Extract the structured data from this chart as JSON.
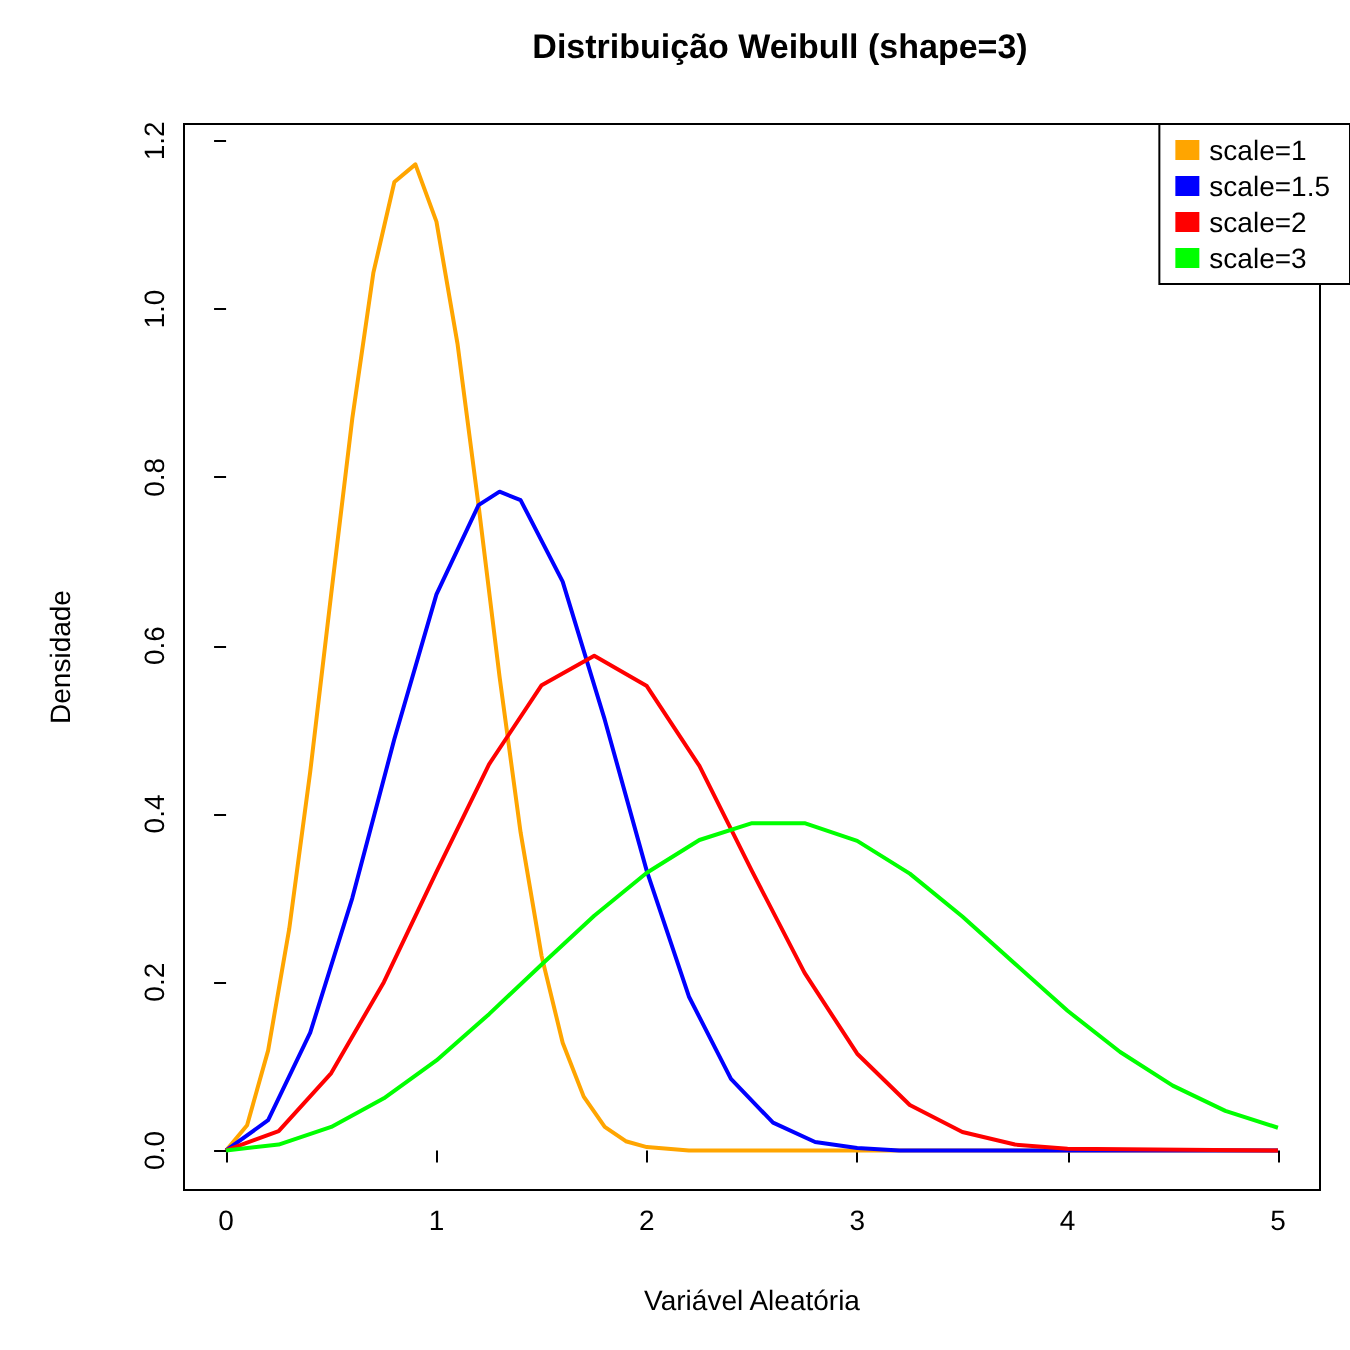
{
  "chart_data": {
    "type": "line",
    "title": "Distribuição Weibull (shape=3)",
    "xlabel": "Variável Aleatória",
    "ylabel": "Densidade",
    "xlim": [
      -0.2,
      5.2
    ],
    "xticks": [
      0,
      1,
      2,
      3,
      4,
      5
    ],
    "ylim": [
      -0.047,
      1.22
    ],
    "yticks": [
      {
        "value": 0,
        "label": "0.0"
      },
      0.2,
      0.4,
      0.6,
      0.8,
      {
        "value": 1,
        "label": "1.0"
      },
      1.2
    ],
    "grid": false,
    "legend": "top right",
    "marker": "none",
    "line_style": "solid",
    "series": [
      {
        "name": "scale=1",
        "color": "#ffa500",
        "x": [
          0,
          0.1,
          0.2,
          0.3,
          0.4,
          0.5,
          0.6,
          0.7,
          0.8,
          0.9,
          1.0,
          1.1,
          1.2,
          1.3,
          1.4,
          1.5,
          1.6,
          1.7,
          1.8,
          1.9,
          2.0,
          2.2,
          5
        ],
        "values": [
          0,
          0.03,
          0.119,
          0.263,
          0.45,
          0.662,
          0.87,
          1.043,
          1.151,
          1.172,
          1.104,
          0.959,
          0.767,
          0.563,
          0.378,
          0.231,
          0.128,
          0.064,
          0.028,
          0.011,
          0.004,
          0,
          0
        ]
      },
      {
        "name": "scale=1.5",
        "color": "#0000ff",
        "x": [
          0,
          0.2,
          0.4,
          0.6,
          0.8,
          1.0,
          1.2,
          1.3,
          1.4,
          1.6,
          1.8,
          2.0,
          2.2,
          2.4,
          2.6,
          2.8,
          3.0,
          3.2,
          5
        ],
        "values": [
          0,
          0.036,
          0.14,
          0.3,
          0.489,
          0.661,
          0.767,
          0.783,
          0.773,
          0.676,
          0.512,
          0.332,
          0.183,
          0.085,
          0.033,
          0.01,
          0.003,
          0,
          0
        ]
      },
      {
        "name": "scale=2",
        "color": "#ff0000",
        "x": [
          0,
          0.25,
          0.5,
          0.75,
          1.0,
          1.25,
          1.5,
          1.75,
          2.0,
          2.25,
          2.5,
          2.75,
          3.0,
          3.25,
          3.5,
          3.75,
          4.0,
          5
        ],
        "values": [
          0,
          0.023,
          0.092,
          0.2,
          0.331,
          0.459,
          0.553,
          0.588,
          0.552,
          0.457,
          0.332,
          0.211,
          0.115,
          0.054,
          0.022,
          0.007,
          0.002,
          0
        ]
      },
      {
        "name": "scale=3",
        "color": "#00ff00",
        "x": [
          0,
          0.25,
          0.5,
          0.75,
          1.0,
          1.25,
          1.5,
          1.75,
          2.0,
          2.25,
          2.5,
          2.75,
          3.0,
          3.25,
          3.5,
          3.75,
          4.0,
          4.25,
          4.5,
          4.75,
          5.0
        ],
        "values": [
          0,
          0.007,
          0.028,
          0.062,
          0.107,
          0.162,
          0.221,
          0.279,
          0.33,
          0.369,
          0.389,
          0.389,
          0.368,
          0.329,
          0.278,
          0.222,
          0.166,
          0.117,
          0.077,
          0.047,
          0.027
        ]
      }
    ]
  }
}
